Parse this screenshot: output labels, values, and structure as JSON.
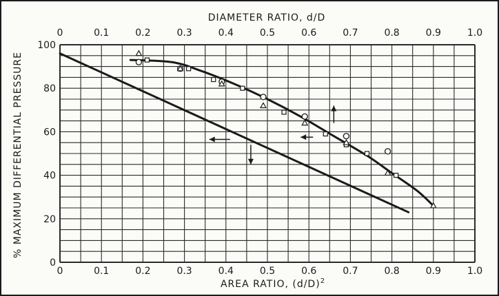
{
  "chart_data": {
    "type": "scatter",
    "top_axis_label": "DIAMETER RATIO, d/D",
    "top_ticks": [
      "0",
      "0.1",
      "0.2",
      "0.3",
      "0.4",
      "0.5",
      "0.6",
      "0.7",
      "0.8",
      "0.9",
      "1.0"
    ],
    "bottom_axis_label": "AREA RATIO, (d/D)",
    "bottom_axis_label_exponent": "2",
    "bottom_ticks": [
      "0",
      "0.1",
      "0.2",
      "0.3",
      "0.4",
      "0.5",
      "0.6",
      "0.7",
      "0.8",
      "0.9",
      "1.0"
    ],
    "ylabel": "% MAXIMUM DIFFERENTIAL PRESSURE",
    "y_ticks": [
      "0",
      "20",
      "40",
      "60",
      "80",
      "100"
    ],
    "xlim": [
      0,
      1.0
    ],
    "ylim": [
      0,
      100
    ],
    "grid": true,
    "series": [
      {
        "marker": "line",
        "x": [
          0,
          0.84
        ],
        "y": [
          96,
          23
        ]
      },
      {
        "marker": "line",
        "x": [
          0.17,
          0.27,
          0.34,
          0.42,
          0.5,
          0.58,
          0.66,
          0.74,
          0.8,
          0.86,
          0.9
        ],
        "y": [
          93,
          92,
          88,
          82,
          75,
          67,
          58,
          49,
          41,
          33,
          26
        ]
      },
      {
        "marker": "circle",
        "x": [
          0.19,
          0.29,
          0.39,
          0.49,
          0.59,
          0.69,
          0.79
        ],
        "y": [
          92,
          89,
          83,
          76,
          67,
          58,
          51
        ]
      },
      {
        "marker": "square",
        "x": [
          0.21,
          0.31,
          0.37,
          0.44,
          0.54,
          0.64,
          0.69,
          0.74,
          0.81
        ],
        "y": [
          93,
          89,
          84,
          80,
          69,
          59,
          54,
          50,
          40
        ]
      },
      {
        "marker": "triangle",
        "x": [
          0.19,
          0.29,
          0.39,
          0.49,
          0.59,
          0.69,
          0.79,
          0.9
        ],
        "y": [
          96,
          89,
          82,
          72,
          64,
          55,
          41,
          26
        ]
      }
    ],
    "arrows": [
      {
        "from": [
          0.41,
          56.5
        ],
        "to": [
          0.36,
          56.5
        ]
      },
      {
        "from": [
          0.46,
          54
        ],
        "to": [
          0.46,
          45
        ]
      },
      {
        "from": [
          0.61,
          57.5
        ],
        "to": [
          0.58,
          57.5
        ]
      },
      {
        "from": [
          0.66,
          64
        ],
        "to": [
          0.66,
          72
        ]
      }
    ],
    "colors": {
      "ink": "#1a1a1a",
      "grid": "#2a2a2a",
      "background": "#fbfbf8"
    }
  }
}
